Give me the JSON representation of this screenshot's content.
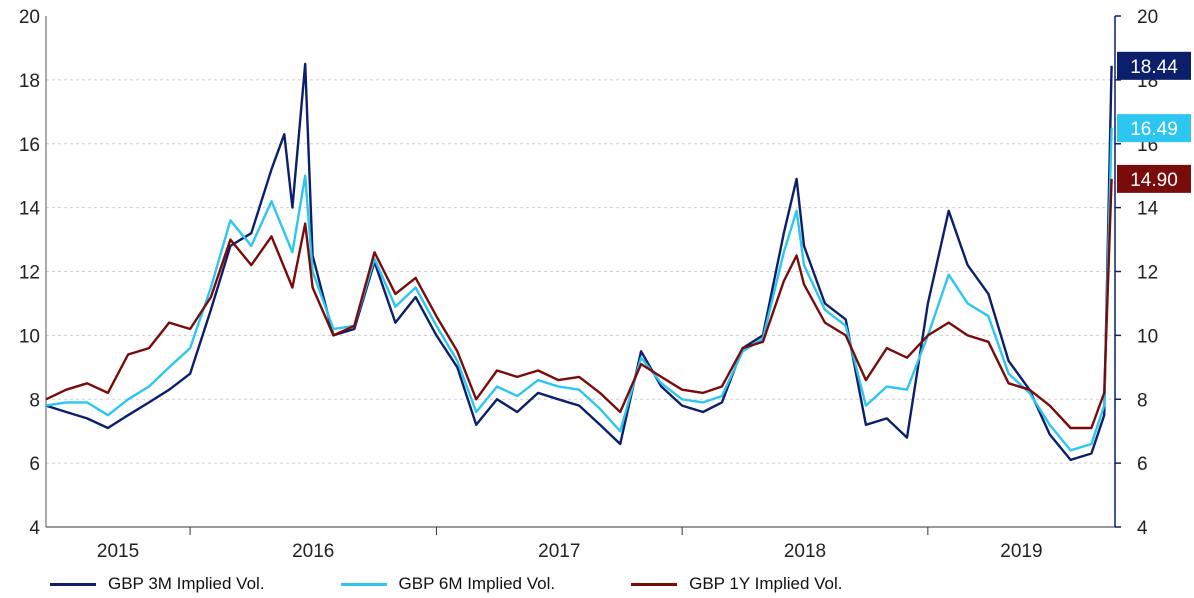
{
  "chart_data": {
    "type": "line",
    "title": "",
    "xlabel": "",
    "ylabel": "",
    "ylim": [
      4,
      20
    ],
    "y_ticks": [
      "4",
      "6",
      "8",
      "10",
      "12",
      "14",
      "16",
      "18",
      "20"
    ],
    "right_axis_ticks": [
      "4",
      "6",
      "8",
      "10",
      "12",
      "14",
      "16",
      "18",
      "20"
    ],
    "x_labels": [
      "2015",
      "2016",
      "2017",
      "2018",
      "2019"
    ],
    "grid": "horizontal dashed",
    "legend_position": "bottom",
    "series": [
      {
        "name": "GBP 3M Implied Vol.",
        "color": "#0b1f6b",
        "end_label": "18.44",
        "points": [
          [
            "2015-06-01",
            7.8
          ],
          [
            "2015-07-01",
            7.6
          ],
          [
            "2015-08-01",
            7.4
          ],
          [
            "2015-09-01",
            7.1
          ],
          [
            "2015-10-01",
            7.5
          ],
          [
            "2015-11-01",
            7.9
          ],
          [
            "2015-12-01",
            8.3
          ],
          [
            "2016-01-01",
            8.8
          ],
          [
            "2016-02-01",
            10.8
          ],
          [
            "2016-03-01",
            12.8
          ],
          [
            "2016-04-01",
            13.2
          ],
          [
            "2016-05-01",
            15.2
          ],
          [
            "2016-05-20",
            16.3
          ],
          [
            "2016-06-01",
            14.0
          ],
          [
            "2016-06-20",
            18.5
          ],
          [
            "2016-07-01",
            12.5
          ],
          [
            "2016-08-01",
            10.0
          ],
          [
            "2016-09-01",
            10.2
          ],
          [
            "2016-10-01",
            12.3
          ],
          [
            "2016-11-01",
            10.4
          ],
          [
            "2016-12-01",
            11.2
          ],
          [
            "2017-01-01",
            10.0
          ],
          [
            "2017-02-01",
            9.0
          ],
          [
            "2017-03-01",
            7.2
          ],
          [
            "2017-04-01",
            8.0
          ],
          [
            "2017-05-01",
            7.6
          ],
          [
            "2017-06-01",
            8.2
          ],
          [
            "2017-07-01",
            8.0
          ],
          [
            "2017-08-01",
            7.8
          ],
          [
            "2017-09-01",
            7.2
          ],
          [
            "2017-10-01",
            6.6
          ],
          [
            "2017-11-01",
            9.5
          ],
          [
            "2017-12-01",
            8.4
          ],
          [
            "2018-01-01",
            7.8
          ],
          [
            "2018-02-01",
            7.6
          ],
          [
            "2018-03-01",
            7.9
          ],
          [
            "2018-04-01",
            9.6
          ],
          [
            "2018-05-01",
            10.0
          ],
          [
            "2018-06-01",
            13.2
          ],
          [
            "2018-06-20",
            14.9
          ],
          [
            "2018-07-01",
            12.8
          ],
          [
            "2018-08-01",
            11.0
          ],
          [
            "2018-09-01",
            10.5
          ],
          [
            "2018-10-01",
            7.2
          ],
          [
            "2018-11-01",
            7.4
          ],
          [
            "2018-12-01",
            6.8
          ],
          [
            "2019-01-01",
            11.0
          ],
          [
            "2019-02-01",
            13.9
          ],
          [
            "2019-03-01",
            12.2
          ],
          [
            "2019-04-01",
            11.3
          ],
          [
            "2019-05-01",
            9.2
          ],
          [
            "2019-06-01",
            8.3
          ],
          [
            "2019-07-01",
            6.9
          ],
          [
            "2019-08-01",
            6.1
          ],
          [
            "2019-09-01",
            6.3
          ],
          [
            "2019-09-20",
            7.5
          ],
          [
            "2019-10-01",
            18.44
          ]
        ]
      },
      {
        "name": "GBP 6M Implied Vol.",
        "color": "#2cc6f0",
        "end_label": "16.49",
        "points": [
          [
            "2015-06-01",
            7.8
          ],
          [
            "2015-07-01",
            7.9
          ],
          [
            "2015-08-01",
            7.9
          ],
          [
            "2015-09-01",
            7.5
          ],
          [
            "2015-10-01",
            8.0
          ],
          [
            "2015-11-01",
            8.4
          ],
          [
            "2015-12-01",
            9.0
          ],
          [
            "2016-01-01",
            9.6
          ],
          [
            "2016-02-01",
            11.5
          ],
          [
            "2016-03-01",
            13.6
          ],
          [
            "2016-04-01",
            12.8
          ],
          [
            "2016-05-01",
            14.2
          ],
          [
            "2016-06-01",
            12.6
          ],
          [
            "2016-06-20",
            15.0
          ],
          [
            "2016-07-01",
            12.0
          ],
          [
            "2016-08-01",
            10.2
          ],
          [
            "2016-09-01",
            10.3
          ],
          [
            "2016-10-01",
            12.4
          ],
          [
            "2016-11-01",
            10.9
          ],
          [
            "2016-12-01",
            11.5
          ],
          [
            "2017-01-01",
            10.3
          ],
          [
            "2017-02-01",
            9.2
          ],
          [
            "2017-03-01",
            7.6
          ],
          [
            "2017-04-01",
            8.4
          ],
          [
            "2017-05-01",
            8.1
          ],
          [
            "2017-06-01",
            8.6
          ],
          [
            "2017-07-01",
            8.4
          ],
          [
            "2017-08-01",
            8.3
          ],
          [
            "2017-09-01",
            7.7
          ],
          [
            "2017-10-01",
            7.0
          ],
          [
            "2017-11-01",
            9.3
          ],
          [
            "2017-12-01",
            8.5
          ],
          [
            "2018-01-01",
            8.0
          ],
          [
            "2018-02-01",
            7.9
          ],
          [
            "2018-03-01",
            8.1
          ],
          [
            "2018-04-01",
            9.5
          ],
          [
            "2018-05-01",
            9.9
          ],
          [
            "2018-06-01",
            12.6
          ],
          [
            "2018-06-20",
            13.9
          ],
          [
            "2018-07-01",
            12.2
          ],
          [
            "2018-08-01",
            10.8
          ],
          [
            "2018-09-01",
            10.3
          ],
          [
            "2018-10-01",
            7.8
          ],
          [
            "2018-11-01",
            8.4
          ],
          [
            "2018-12-01",
            8.3
          ],
          [
            "2019-01-01",
            10.0
          ],
          [
            "2019-02-01",
            11.9
          ],
          [
            "2019-03-01",
            11.0
          ],
          [
            "2019-04-01",
            10.6
          ],
          [
            "2019-05-01",
            8.8
          ],
          [
            "2019-06-01",
            8.2
          ],
          [
            "2019-07-01",
            7.2
          ],
          [
            "2019-08-01",
            6.4
          ],
          [
            "2019-09-01",
            6.6
          ],
          [
            "2019-09-20",
            7.8
          ],
          [
            "2019-10-01",
            16.49
          ]
        ]
      },
      {
        "name": "GBP 1Y Implied Vol.",
        "color": "#7a0b0b",
        "end_label": "14.90",
        "points": [
          [
            "2015-06-01",
            8.0
          ],
          [
            "2015-07-01",
            8.3
          ],
          [
            "2015-08-01",
            8.5
          ],
          [
            "2015-09-01",
            8.2
          ],
          [
            "2015-10-01",
            9.4
          ],
          [
            "2015-11-01",
            9.6
          ],
          [
            "2015-12-01",
            10.4
          ],
          [
            "2016-01-01",
            10.2
          ],
          [
            "2016-02-01",
            11.2
          ],
          [
            "2016-03-01",
            13.0
          ],
          [
            "2016-04-01",
            12.2
          ],
          [
            "2016-05-01",
            13.1
          ],
          [
            "2016-06-01",
            11.5
          ],
          [
            "2016-06-20",
            13.5
          ],
          [
            "2016-07-01",
            11.5
          ],
          [
            "2016-08-01",
            10.0
          ],
          [
            "2016-09-01",
            10.3
          ],
          [
            "2016-10-01",
            12.6
          ],
          [
            "2016-11-01",
            11.3
          ],
          [
            "2016-12-01",
            11.8
          ],
          [
            "2017-01-01",
            10.6
          ],
          [
            "2017-02-01",
            9.5
          ],
          [
            "2017-03-01",
            8.0
          ],
          [
            "2017-04-01",
            8.9
          ],
          [
            "2017-05-01",
            8.7
          ],
          [
            "2017-06-01",
            8.9
          ],
          [
            "2017-07-01",
            8.6
          ],
          [
            "2017-08-01",
            8.7
          ],
          [
            "2017-09-01",
            8.2
          ],
          [
            "2017-10-01",
            7.6
          ],
          [
            "2017-11-01",
            9.1
          ],
          [
            "2017-12-01",
            8.7
          ],
          [
            "2018-01-01",
            8.3
          ],
          [
            "2018-02-01",
            8.2
          ],
          [
            "2018-03-01",
            8.4
          ],
          [
            "2018-04-01",
            9.6
          ],
          [
            "2018-05-01",
            9.8
          ],
          [
            "2018-06-01",
            11.7
          ],
          [
            "2018-06-20",
            12.5
          ],
          [
            "2018-07-01",
            11.6
          ],
          [
            "2018-08-01",
            10.4
          ],
          [
            "2018-09-01",
            10.0
          ],
          [
            "2018-10-01",
            8.6
          ],
          [
            "2018-11-01",
            9.6
          ],
          [
            "2018-12-01",
            9.3
          ],
          [
            "2019-01-01",
            10.0
          ],
          [
            "2019-02-01",
            10.4
          ],
          [
            "2019-03-01",
            10.0
          ],
          [
            "2019-04-01",
            9.8
          ],
          [
            "2019-05-01",
            8.5
          ],
          [
            "2019-06-01",
            8.3
          ],
          [
            "2019-07-01",
            7.8
          ],
          [
            "2019-08-01",
            7.1
          ],
          [
            "2019-09-01",
            7.1
          ],
          [
            "2019-09-20",
            8.2
          ],
          [
            "2019-10-01",
            14.9
          ]
        ]
      }
    ]
  }
}
